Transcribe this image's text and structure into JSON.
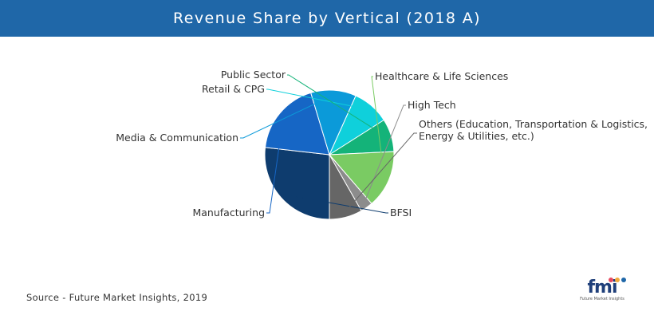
{
  "header": {
    "title": "Revenue Share by Vertical (2018 A)"
  },
  "footer": {
    "source": "Source - Future Market Insights, 2019"
  },
  "logo": {
    "word": "fmi",
    "tagline": "Future Market Insights"
  },
  "chart_data": {
    "type": "pie",
    "title": "Revenue Share by Vertical (2018 A)",
    "start_angle_deg": 90,
    "direction": "clockwise",
    "slices": [
      {
        "label": "BFSI",
        "value": 26,
        "color": "#0e3c6e"
      },
      {
        "label": "Manufacturing",
        "value": 18,
        "color": "#1666c5"
      },
      {
        "label": "Media & Communication",
        "value": 11,
        "color": "#0b9ad9"
      },
      {
        "label": "Retail & CPG",
        "value": 9,
        "color": "#0fd0db"
      },
      {
        "label": "Public Sector",
        "value": 8,
        "color": "#14b379"
      },
      {
        "label": "Healthcare & Life Sciences",
        "value": 14,
        "color": "#7acb63"
      },
      {
        "label": "High Tech",
        "value": 3,
        "color": "#8c8c8c"
      },
      {
        "label": "Others (Education, Transportation & Logistics, Energy & Utilities, etc.)",
        "value": 8,
        "color": "#666666"
      }
    ],
    "label_lines": {
      "Others (Education, Transportation & Logistics, Energy & Utilities, etc.)": [
        "Others (Education, Transportation & Logistics,",
        "Energy & Utilities, etc.)"
      ]
    }
  }
}
